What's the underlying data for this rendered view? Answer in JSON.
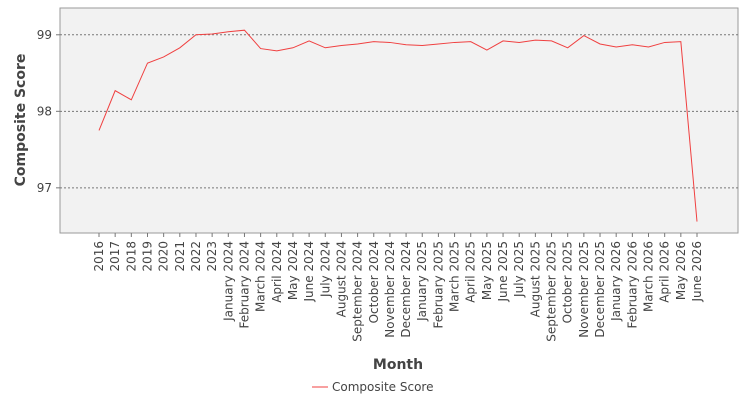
{
  "chart_data": {
    "type": "line",
    "x_label": "Month",
    "y_label": "Composite Score",
    "categories": [
      "2016",
      "2017",
      "2018",
      "2019",
      "2020",
      "2021",
      "2022",
      "2023",
      "January 2024",
      "February 2024",
      "March 2024",
      "April 2024",
      "May 2024",
      "June 2024",
      "July 2024",
      "August 2024",
      "September 2024",
      "October 2024",
      "November 2024",
      "December 2024",
      "January 2025",
      "February 2025",
      "March 2025",
      "April 2025",
      "May 2025",
      "June 2025",
      "July 2025",
      "August 2025",
      "September 2025",
      "October 2025",
      "November 2025",
      "December 2025",
      "January 2026",
      "February 2026",
      "March 2026",
      "April 2026",
      "May 2026",
      "June 2026"
    ],
    "series": [
      {
        "name": "Composite Score",
        "color": "#f04040",
        "values": [
          97.75,
          98.27,
          98.15,
          98.63,
          98.71,
          98.83,
          99.0,
          99.01,
          99.04,
          99.06,
          98.82,
          98.79,
          98.83,
          98.92,
          98.83,
          98.86,
          98.88,
          98.91,
          98.9,
          98.87,
          98.86,
          98.88,
          98.9,
          98.91,
          98.8,
          98.92,
          98.9,
          98.93,
          98.92,
          98.83,
          98.99,
          98.88,
          98.84,
          98.87,
          98.84,
          98.9,
          98.91,
          96.56
        ]
      }
    ],
    "ylim": [
      96.41,
      99.35
    ],
    "yticks": [
      97,
      98,
      99
    ],
    "grid": true,
    "legend": "bottom"
  }
}
